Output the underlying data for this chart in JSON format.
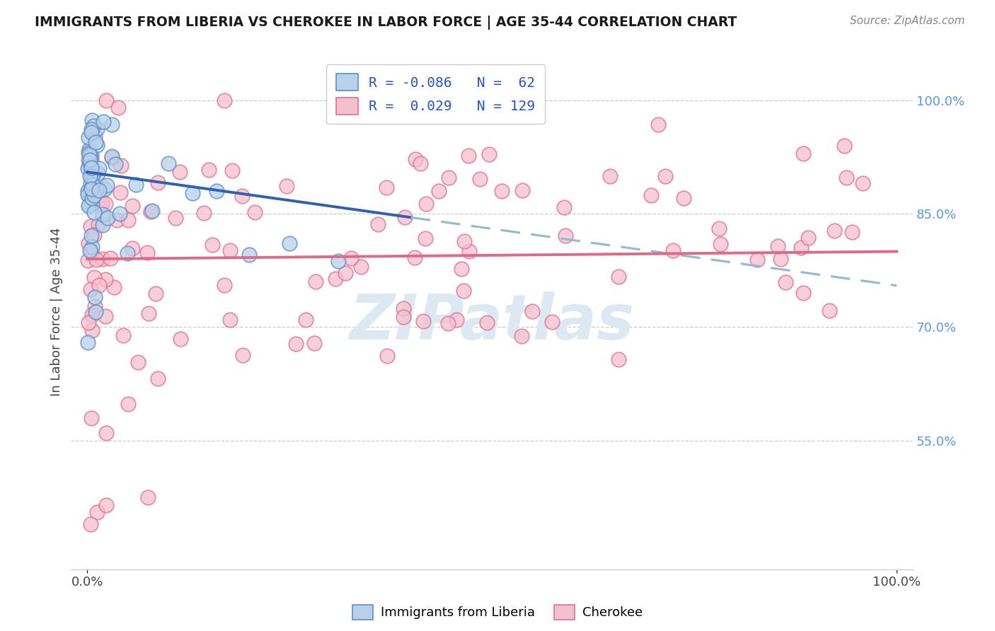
{
  "title": "IMMIGRANTS FROM LIBERIA VS CHEROKEE IN LABOR FORCE | AGE 35-44 CORRELATION CHART",
  "source": "Source: ZipAtlas.com",
  "ylabel": "In Labor Force | Age 35-44",
  "xlim": [
    -0.02,
    1.02
  ],
  "ylim": [
    0.38,
    1.06
  ],
  "y_tick_values": [
    0.55,
    0.7,
    0.85,
    1.0
  ],
  "y_tick_labels": [
    "55.0%",
    "70.0%",
    "85.0%",
    "100.0%"
  ],
  "x_tick_labels": [
    "0.0%",
    "100.0%"
  ],
  "x_tick_values": [
    0.0,
    1.0
  ],
  "legend_label1": "Immigrants from Liberia",
  "legend_label2": "Cherokee",
  "color_blue_fill": "#b8d0ea",
  "color_blue_edge": "#5b8ec4",
  "color_blue_line": "#3060b0",
  "color_blue_dash": "#90b8d8",
  "color_pink_fill": "#f5c0ce",
  "color_pink_edge": "#e07090",
  "color_pink_line": "#e06888",
  "watermark_color": "#dce8f2",
  "grid_color": "#cccccc",
  "title_color": "#1a1a1a",
  "source_color": "#888888",
  "axis_label_color": "#444444",
  "right_tick_color": "#5599ee",
  "legend_text_color": "#2255cc",
  "bottom_label_color": "#555555"
}
